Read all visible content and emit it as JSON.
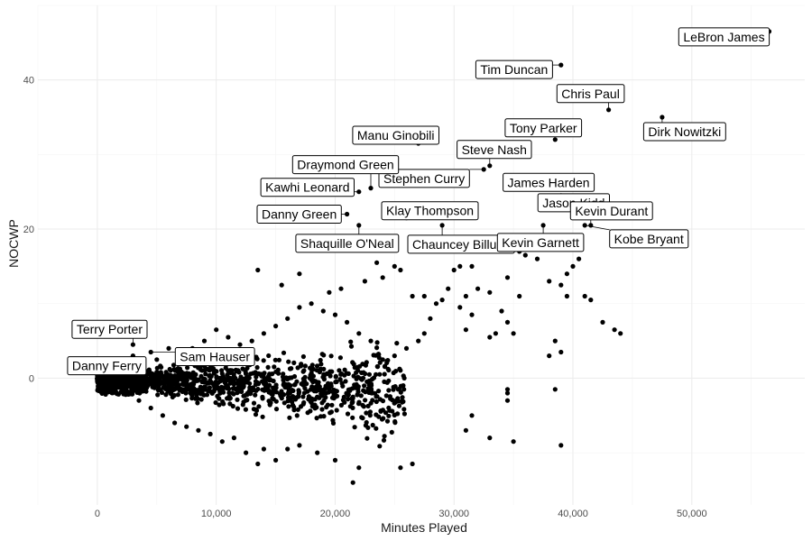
{
  "chart_data": {
    "type": "scatter",
    "title": "",
    "xlabel": "Minutes Played",
    "ylabel": "NOCWP",
    "xlim": [
      -5000,
      59500
    ],
    "ylim": [
      -17,
      50
    ],
    "xticks": [
      0,
      10000,
      20000,
      30000,
      40000,
      50000
    ],
    "xtick_labels": [
      "0",
      "10,000",
      "20,000",
      "30,000",
      "40,000",
      "50,000"
    ],
    "yticks": [
      0,
      20,
      40
    ],
    "ytick_labels": [
      "0",
      "20",
      "40"
    ],
    "grid": true,
    "legend": "none",
    "labeled_points": [
      {
        "name": "LeBron James",
        "x": 56500,
        "y": 46.5
      },
      {
        "name": "Tim Duncan",
        "x": 39000,
        "y": 42
      },
      {
        "name": "Chris Paul",
        "x": 43000,
        "y": 36
      },
      {
        "name": "Dirk Nowitzki",
        "x": 47500,
        "y": 35
      },
      {
        "name": "Tony Parker",
        "x": 38500,
        "y": 32
      },
      {
        "name": "Manu Ginobili",
        "x": 27000,
        "y": 31.5
      },
      {
        "name": "Steve Nash",
        "x": 33000,
        "y": 28.5
      },
      {
        "name": "Stephen Curry",
        "x": 32500,
        "y": 28
      },
      {
        "name": "James Harden",
        "x": 37500,
        "y": 26.5
      },
      {
        "name": "Draymond Green",
        "x": 23000,
        "y": 25.5
      },
      {
        "name": "Kawhi Leonard",
        "x": 22000,
        "y": 25
      },
      {
        "name": "Jason Kidd",
        "x": 39000,
        "y": 24.5
      },
      {
        "name": "Klay Thompson",
        "x": 26000,
        "y": 21.5
      },
      {
        "name": "Danny Green",
        "x": 21000,
        "y": 22
      },
      {
        "name": "Kevin Durant",
        "x": 41500,
        "y": 20.5
      },
      {
        "name": "Kobe Bryant",
        "x": 41000,
        "y": 20.5
      },
      {
        "name": "Chauncey Billups",
        "x": 29000,
        "y": 20.5
      },
      {
        "name": "Kevin Garnett",
        "x": 37500,
        "y": 20.5
      },
      {
        "name": "Shaquille O'Neal",
        "x": 22000,
        "y": 20.5
      },
      {
        "name": "Terry Porter",
        "x": 3000,
        "y": 4.5
      },
      {
        "name": "Sam Hauser",
        "x": 4500,
        "y": 3.5
      },
      {
        "name": "Danny Ferry",
        "x": 3000,
        "y": 3
      }
    ],
    "other_points": [
      [
        30000,
        14.5
      ],
      [
        30500,
        15
      ],
      [
        31500,
        15
      ],
      [
        33000,
        11.5
      ],
      [
        32000,
        12
      ],
      [
        34500,
        13.5
      ],
      [
        34000,
        9
      ],
      [
        35500,
        11
      ],
      [
        31000,
        11
      ],
      [
        30500,
        9.5
      ],
      [
        31500,
        8.5
      ],
      [
        31000,
        6.5
      ],
      [
        33500,
        6
      ],
      [
        33000,
        5.5
      ],
      [
        34500,
        7.5
      ],
      [
        35000,
        6
      ],
      [
        36000,
        16.5
      ],
      [
        35500,
        17
      ],
      [
        37000,
        16
      ],
      [
        38000,
        13
      ],
      [
        39000,
        12.5
      ],
      [
        39500,
        14
      ],
      [
        40000,
        15
      ],
      [
        40500,
        16
      ],
      [
        41000,
        11
      ],
      [
        41500,
        10.5
      ],
      [
        42500,
        7.5
      ],
      [
        43500,
        6.5
      ],
      [
        44000,
        6
      ],
      [
        39500,
        11
      ],
      [
        38500,
        5
      ],
      [
        39000,
        3.5
      ],
      [
        38000,
        3
      ],
      [
        38500,
        -1.5
      ],
      [
        39000,
        -9
      ],
      [
        34500,
        -1.5
      ],
      [
        34500,
        -2
      ],
      [
        34500,
        -3
      ],
      [
        35000,
        -8.5
      ],
      [
        33000,
        -8
      ],
      [
        31500,
        -5
      ],
      [
        31000,
        -7
      ],
      [
        26500,
        -11.5
      ],
      [
        25500,
        -12
      ],
      [
        21500,
        -14
      ],
      [
        22000,
        -12
      ],
      [
        20000,
        -11
      ],
      [
        18500,
        -10
      ],
      [
        17000,
        -9
      ],
      [
        16000,
        -9.5
      ],
      [
        15000,
        -11
      ],
      [
        14000,
        -9.5
      ],
      [
        13500,
        -11.5
      ],
      [
        12500,
        -10
      ],
      [
        11500,
        -8
      ],
      [
        10500,
        -8.5
      ],
      [
        9500,
        -7.5
      ],
      [
        8500,
        -7
      ],
      [
        7500,
        -6.5
      ],
      [
        6500,
        -6
      ],
      [
        5500,
        -5
      ],
      [
        4500,
        -4
      ],
      [
        3500,
        -3
      ],
      [
        13500,
        14.5
      ],
      [
        15500,
        12.5
      ],
      [
        17000,
        14
      ],
      [
        19500,
        11.5
      ],
      [
        20500,
        12
      ],
      [
        22500,
        13
      ],
      [
        24000,
        13.5
      ],
      [
        25500,
        14.5
      ],
      [
        26500,
        11
      ],
      [
        27500,
        11
      ],
      [
        28500,
        10
      ],
      [
        25000,
        15
      ],
      [
        23500,
        15.5
      ],
      [
        29500,
        12
      ],
      [
        29000,
        10.5
      ],
      [
        28000,
        8
      ],
      [
        27500,
        6
      ],
      [
        27000,
        5
      ],
      [
        26000,
        4
      ],
      [
        25000,
        3
      ],
      [
        24000,
        2.5
      ],
      [
        23000,
        5
      ],
      [
        22000,
        6
      ],
      [
        21000,
        7.5
      ],
      [
        20000,
        8.5
      ],
      [
        19000,
        9
      ],
      [
        18000,
        10
      ],
      [
        17000,
        9.5
      ],
      [
        16000,
        8
      ],
      [
        15000,
        7
      ],
      [
        14000,
        6
      ],
      [
        13000,
        5
      ],
      [
        12000,
        4.5
      ],
      [
        11000,
        5.5
      ],
      [
        10000,
        6.5
      ],
      [
        9000,
        5
      ],
      [
        8000,
        4
      ],
      [
        7000,
        3.5
      ],
      [
        6000,
        4
      ],
      [
        5000,
        2.5
      ]
    ]
  }
}
